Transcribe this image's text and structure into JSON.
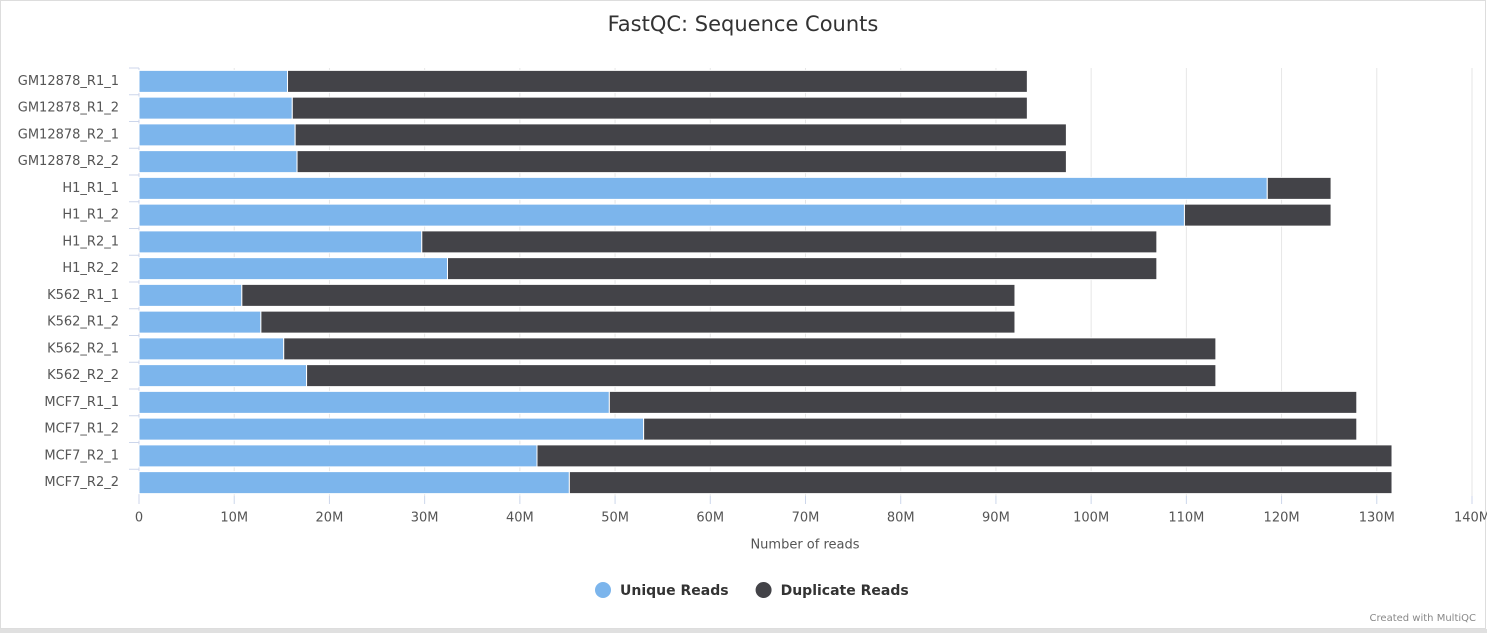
{
  "chart_data": {
    "type": "stacked-bar-horizontal",
    "title": "FastQC: Sequence Counts",
    "x_label": "Number of reads",
    "categories": [
      "GM12878_R1_1",
      "GM12878_R1_2",
      "GM12878_R2_1",
      "GM12878_R2_2",
      "H1_R1_1",
      "H1_R1_2",
      "H1_R2_1",
      "H1_R2_2",
      "K562_R1_1",
      "K562_R1_2",
      "K562_R2_1",
      "K562_R2_2",
      "MCF7_R1_1",
      "MCF7_R1_2",
      "MCF7_R2_1",
      "MCF7_R2_2"
    ],
    "series": [
      {
        "name": "Unique Reads",
        "color": "#7cb5ec",
        "values": [
          15.6,
          16.1,
          16.4,
          16.6,
          118.5,
          109.8,
          29.7,
          32.4,
          10.8,
          12.8,
          15.2,
          17.6,
          49.4,
          53.0,
          41.8,
          45.2
        ]
      },
      {
        "name": "Duplicate Reads",
        "color": "#434348",
        "values": [
          77.7,
          77.2,
          81.0,
          80.8,
          6.7,
          15.4,
          77.2,
          74.5,
          81.2,
          79.2,
          97.9,
          95.5,
          78.5,
          74.9,
          89.8,
          86.4
        ]
      }
    ],
    "xlim": [
      0,
      140
    ],
    "xticks": [
      0,
      {
        "value": 10,
        "label": "10M"
      },
      {
        "value": 20,
        "label": "20M"
      },
      {
        "value": 30,
        "label": "30M"
      },
      {
        "value": 40,
        "label": "40M"
      },
      {
        "value": 50,
        "label": "50M"
      },
      {
        "value": 60,
        "label": "60M"
      },
      {
        "value": 70,
        "label": "70M"
      },
      {
        "value": 80,
        "label": "80M"
      },
      {
        "value": 90,
        "label": "90M"
      },
      {
        "value": 100,
        "label": "100M"
      },
      {
        "value": 110,
        "label": "110M"
      },
      {
        "value": 120,
        "label": "120M"
      },
      {
        "value": 130,
        "label": "130M"
      },
      {
        "value": 140,
        "label": "140M"
      }
    ],
    "grid": true,
    "legend": "bottom",
    "credit": "Created with MultiQC"
  }
}
